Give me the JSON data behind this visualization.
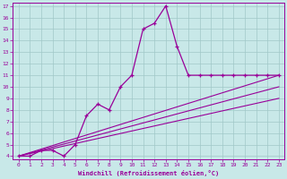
{
  "xlabel": "Windchill (Refroidissement éolien,°C)",
  "xlim": [
    -0.5,
    23.5
  ],
  "ylim": [
    3.7,
    17.3
  ],
  "xticks": [
    0,
    1,
    2,
    3,
    4,
    5,
    6,
    7,
    8,
    9,
    10,
    11,
    12,
    13,
    14,
    15,
    16,
    17,
    18,
    19,
    20,
    21,
    22,
    23
  ],
  "yticks": [
    4,
    5,
    6,
    7,
    8,
    9,
    10,
    11,
    12,
    13,
    14,
    15,
    16,
    17
  ],
  "bg_color": "#c8e8e8",
  "line_color": "#990099",
  "grid_color": "#a0c8c8",
  "line1_x": [
    0,
    1,
    2,
    3,
    4,
    5,
    6,
    7,
    8,
    9,
    10,
    11,
    12,
    13,
    14,
    15,
    16,
    17,
    18,
    19,
    20,
    21,
    22,
    23
  ],
  "line1_y": [
    4.0,
    4.0,
    4.5,
    4.5,
    4.0,
    5.0,
    7.5,
    8.5,
    8.0,
    10.0,
    11.0,
    15.0,
    15.5,
    17.0,
    13.5,
    11.0,
    11.0,
    11.0,
    11.0,
    11.0,
    11.0,
    11.0,
    11.0,
    11.0
  ],
  "line2_x": [
    0,
    23
  ],
  "line2_y": [
    4.0,
    11.0
  ],
  "line3_x": [
    0,
    23
  ],
  "line3_y": [
    4.0,
    9.0
  ],
  "line4_x": [
    0,
    23
  ],
  "line4_y": [
    4.0,
    10.0
  ]
}
